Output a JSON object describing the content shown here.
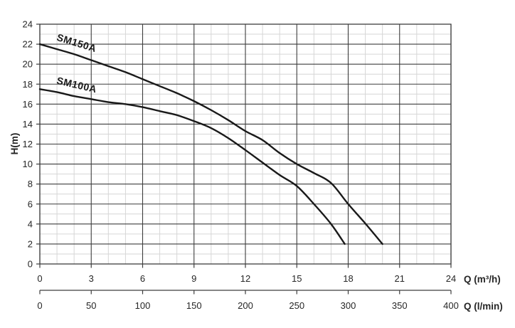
{
  "window": {
    "background": "#ffffff"
  },
  "chart_data": {
    "type": "line",
    "title": "",
    "ylabel": "H(m)",
    "grid": true,
    "legend_position": "labels-on-curves",
    "y_axis": {
      "min": 0,
      "max": 24,
      "major_step": 2,
      "minor_step": 1,
      "ticks": [
        0,
        2,
        4,
        6,
        8,
        10,
        12,
        14,
        16,
        18,
        20,
        22,
        24
      ]
    },
    "x_axis_primary": {
      "label": "Q (m³/h)",
      "min": 0,
      "max": 24,
      "major_step": 3,
      "minor_step": 1,
      "ticks": [
        0,
        3,
        6,
        9,
        12,
        15,
        18,
        21,
        24
      ]
    },
    "x_axis_secondary": {
      "label": "Q (l/min)",
      "min": 0,
      "max": 400,
      "major_step": 50,
      "ticks": [
        0,
        50,
        100,
        150,
        200,
        250,
        300,
        350,
        400
      ]
    },
    "series": [
      {
        "name": "SM150A",
        "points": [
          [
            0,
            22
          ],
          [
            1,
            21.5
          ],
          [
            2,
            21.0
          ],
          [
            3,
            20.4
          ],
          [
            4,
            19.8
          ],
          [
            5,
            19.2
          ],
          [
            6,
            18.5
          ],
          [
            7,
            17.8
          ],
          [
            8,
            17.1
          ],
          [
            9,
            16.3
          ],
          [
            10,
            15.4
          ],
          [
            11,
            14.4
          ],
          [
            12,
            13.3
          ],
          [
            13,
            12.4
          ],
          [
            14,
            11.1
          ],
          [
            15,
            10.0
          ],
          [
            16,
            9.1
          ],
          [
            17,
            8.1
          ],
          [
            18,
            6.0
          ],
          [
            19,
            4.05
          ],
          [
            20,
            2.0
          ]
        ],
        "label_anchor": {
          "x": 0.95,
          "y": 22.4
        },
        "label_angle_deg": 17
      },
      {
        "name": "SM100A",
        "points": [
          [
            0,
            17.5
          ],
          [
            1,
            17.2
          ],
          [
            2,
            16.8
          ],
          [
            3,
            16.5
          ],
          [
            4,
            16.2
          ],
          [
            5,
            16.0
          ],
          [
            6,
            15.7
          ],
          [
            7,
            15.3
          ],
          [
            8,
            14.9
          ],
          [
            9,
            14.3
          ],
          [
            10,
            13.6
          ],
          [
            11,
            12.6
          ],
          [
            12,
            11.4
          ],
          [
            13,
            10.15
          ],
          [
            14,
            8.9
          ],
          [
            15,
            7.8
          ],
          [
            16,
            6.0
          ],
          [
            17,
            4.0
          ],
          [
            17.8,
            2.0
          ]
        ],
        "label_anchor": {
          "x": 0.95,
          "y": 18.05
        },
        "label_angle_deg": 13
      }
    ],
    "colors": {
      "curve": "#191919",
      "grid_major": "#3d3d3d",
      "grid_minor": "#d6d6d6",
      "axis": "#3d3d3d",
      "text": "#262626"
    }
  }
}
